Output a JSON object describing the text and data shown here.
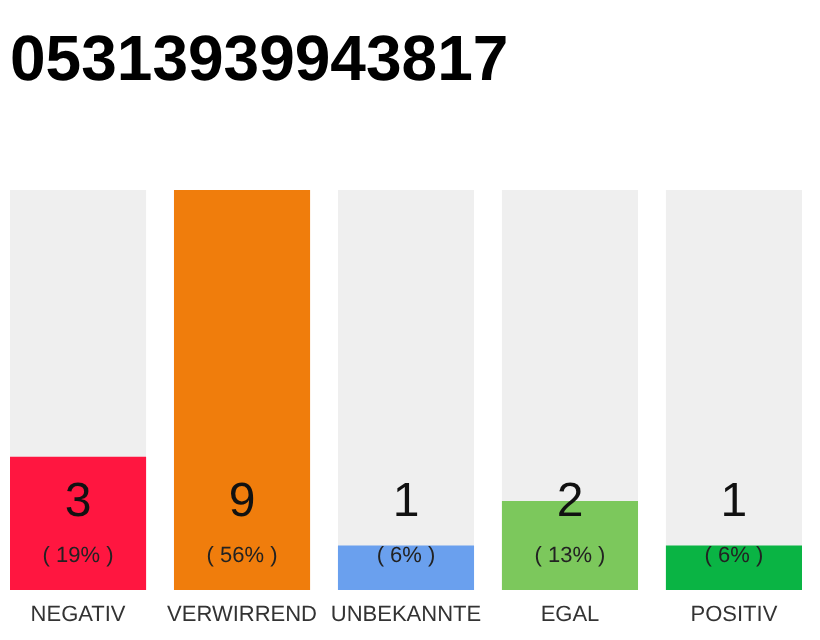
{
  "chart_data": {
    "type": "bar",
    "title": "05313939943817",
    "categories": [
      "NEGATIV",
      "VERWIRREND",
      "UNBEKANNTE",
      "EGAL",
      "POSITIV"
    ],
    "values": [
      3,
      9,
      1,
      2,
      1
    ],
    "colors": [
      "#ff1640",
      "#f07d0c",
      "#6aa0ee",
      "#7cc85c",
      "#0ab444"
    ],
    "data_labels": true,
    "annotations": [
      "( 19% )",
      "( 56% )",
      "( 6% )",
      "( 13% )",
      "( 6% )"
    ]
  }
}
